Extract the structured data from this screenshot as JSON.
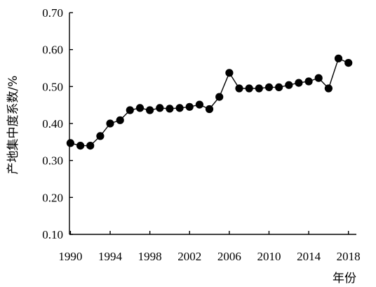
{
  "chart_data": {
    "type": "line",
    "title": "",
    "xlabel": "年份",
    "ylabel": "产地集中度系数/%",
    "x": [
      1990,
      1991,
      1992,
      1993,
      1994,
      1995,
      1996,
      1997,
      1998,
      1999,
      2000,
      2001,
      2002,
      2003,
      2004,
      2005,
      2006,
      2007,
      2008,
      2009,
      2010,
      2011,
      2012,
      2013,
      2014,
      2015,
      2016,
      2017,
      2018
    ],
    "series": [
      {
        "values": [
          0.347,
          0.34,
          0.34,
          0.366,
          0.4,
          0.409,
          0.436,
          0.442,
          0.436,
          0.442,
          0.44,
          0.442,
          0.445,
          0.451,
          0.439,
          0.472,
          0.537,
          0.495,
          0.495,
          0.495,
          0.498,
          0.498,
          0.504,
          0.51,
          0.514,
          0.523,
          0.495,
          0.576,
          0.564
        ]
      }
    ],
    "xlim": [
      1989.9,
      2018.8
    ],
    "ylim": [
      0.1,
      0.7
    ],
    "x_ticks": [
      "1990",
      "1994",
      "1998",
      "2002",
      "2006",
      "2010",
      "2014",
      "2018"
    ],
    "y_ticks": [
      "0.10",
      "0.20",
      "0.30",
      "0.40",
      "0.50",
      "0.60",
      "0.70"
    ],
    "grid": false,
    "legend": "none",
    "colors": {
      "line": "#000000",
      "marker": "#000000",
      "axis": "#000000"
    }
  }
}
